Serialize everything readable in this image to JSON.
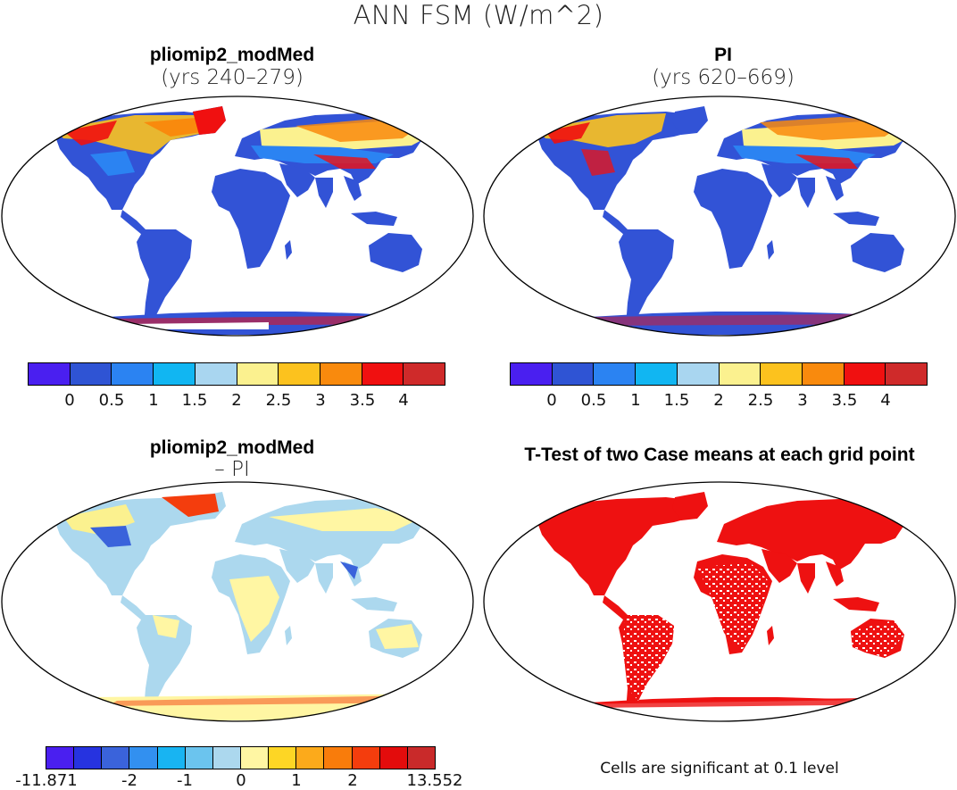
{
  "figure": {
    "title": "ANN FSM (W/m^2)"
  },
  "panels": {
    "top_left": {
      "title": "pliomip2_modMed",
      "subtitle": "(yrs 240–279)"
    },
    "top_right": {
      "title": "PI",
      "subtitle": "(yrs 620–669)"
    },
    "bottom_left": {
      "title": "pliomip2_modMed",
      "subtitle": "– PI"
    },
    "bottom_right": {
      "title": "T-Test of two Case means at each grid point",
      "note": "Cells are significant at 0.1 level"
    }
  },
  "colors": {
    "ocean": "#ffffff",
    "land_low": "#3253d6",
    "coast": "#000000",
    "signif": "#ee1111"
  },
  "chart_data": [
    {
      "type": "heatmap",
      "panel": "top_left",
      "colorbar": {
        "ticks": [
          "0",
          "0.5",
          "1",
          "1.5",
          "2",
          "2.5",
          "3",
          "3.5",
          "4"
        ],
        "colors": [
          "#4a1ff0",
          "#2f54d4",
          "#2b83f2",
          "#11b6f2",
          "#a9d6f0",
          "#fbf18f",
          "#fcc21e",
          "#f98a0d",
          "#f01010",
          "#cf2a2a"
        ]
      }
    },
    {
      "type": "heatmap",
      "panel": "top_right",
      "colorbar": {
        "ticks": [
          "0",
          "0.5",
          "1",
          "1.5",
          "2",
          "2.5",
          "3",
          "3.5",
          "4"
        ],
        "colors": [
          "#4a1ff0",
          "#2f54d4",
          "#2b83f2",
          "#11b6f2",
          "#a9d6f0",
          "#fbf18f",
          "#fcc21e",
          "#f98a0d",
          "#f01010",
          "#cf2a2a"
        ]
      }
    },
    {
      "type": "heatmap",
      "panel": "bottom_left",
      "colorbar": {
        "ticks": [
          "-11.871",
          "-2",
          "-1",
          "0",
          "1",
          "2",
          "13.552"
        ],
        "colors": [
          "#4a1ff0",
          "#2633e0",
          "#3a63db",
          "#3290f0",
          "#18b4f2",
          "#6bc4ee",
          "#acd8ee",
          "#fff6a3",
          "#fdd625",
          "#fcaa1b",
          "#f97c0b",
          "#f43d0d",
          "#e30c0c",
          "#c92a2a"
        ]
      }
    },
    {
      "type": "heatmap",
      "panel": "bottom_right",
      "legend": "Cells are significant at 0.1 level"
    }
  ]
}
